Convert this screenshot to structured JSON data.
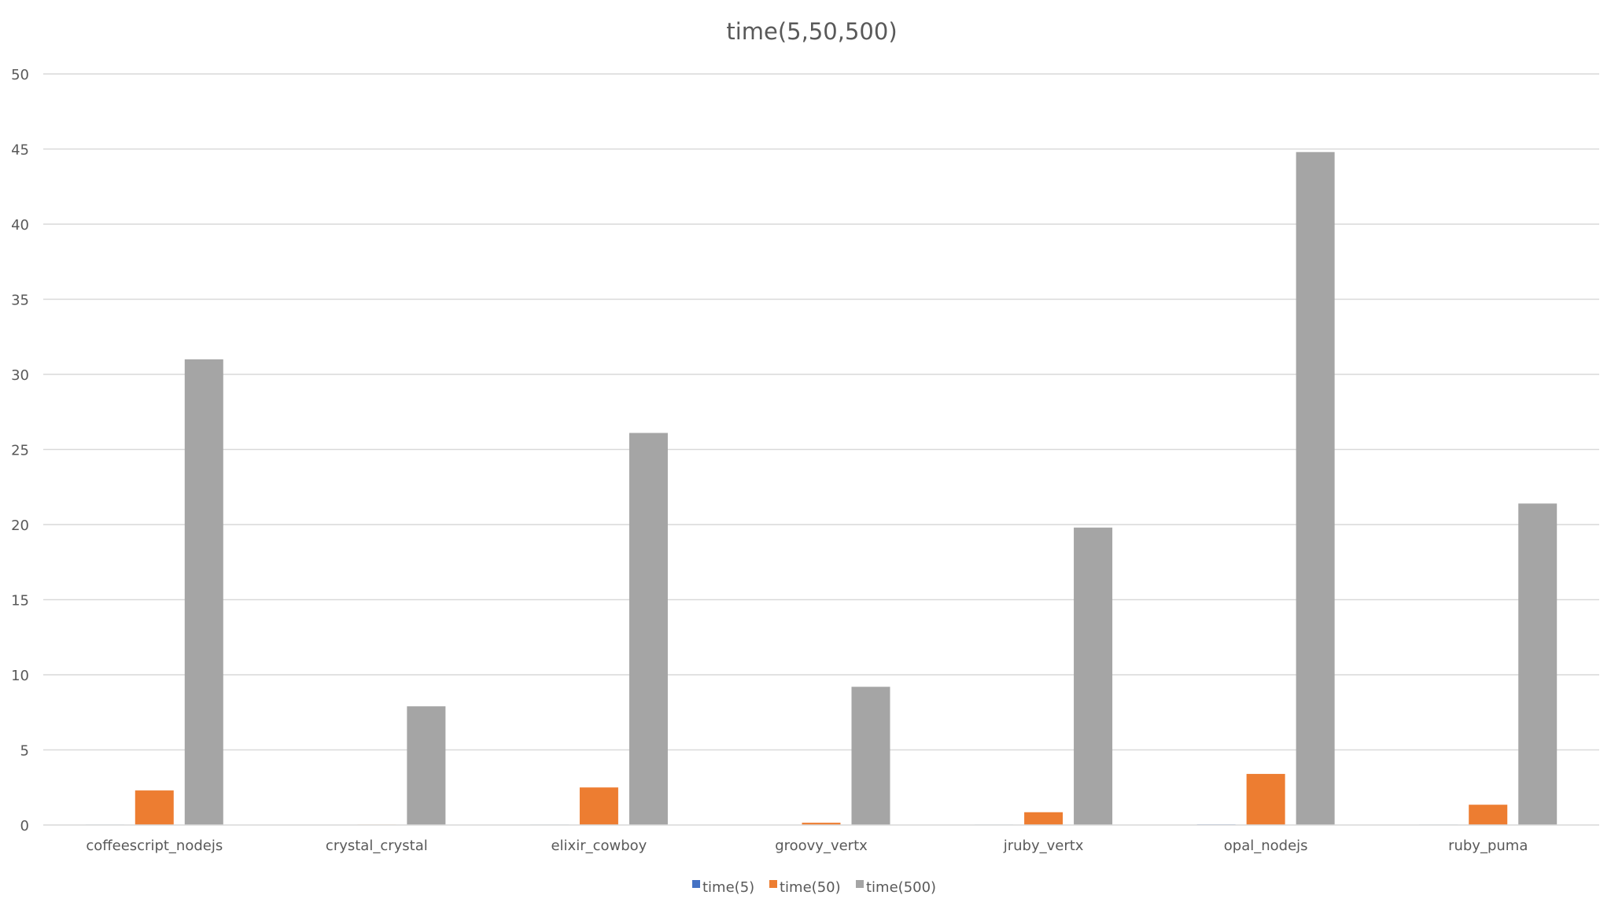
{
  "chart_data": {
    "type": "bar",
    "title": "time(5,50,500)",
    "xlabel": "",
    "ylabel": "",
    "ylim": [
      0,
      50
    ],
    "yticks": [
      0,
      5,
      10,
      15,
      20,
      25,
      30,
      35,
      40,
      45,
      50
    ],
    "grid": true,
    "legend_position": "bottom",
    "categories": [
      "coffeescript_nodejs",
      "crystal_crystal",
      "elixir_cowboy",
      "groovy_vertx",
      "jruby_vertx",
      "opal_nodejs",
      "ruby_puma"
    ],
    "series": [
      {
        "name": "time(5)",
        "color": "#4472c4",
        "values": [
          0.03,
          0.02,
          0.03,
          0.02,
          0.03,
          0.04,
          0.03
        ]
      },
      {
        "name": "time(50)",
        "color": "#ed7d31",
        "values": [
          2.3,
          0.03,
          2.5,
          0.15,
          0.85,
          3.4,
          1.35
        ]
      },
      {
        "name": "time(500)",
        "color": "#a5a5a5",
        "values": [
          31.0,
          7.9,
          26.1,
          9.2,
          19.8,
          44.8,
          21.4
        ]
      }
    ]
  }
}
